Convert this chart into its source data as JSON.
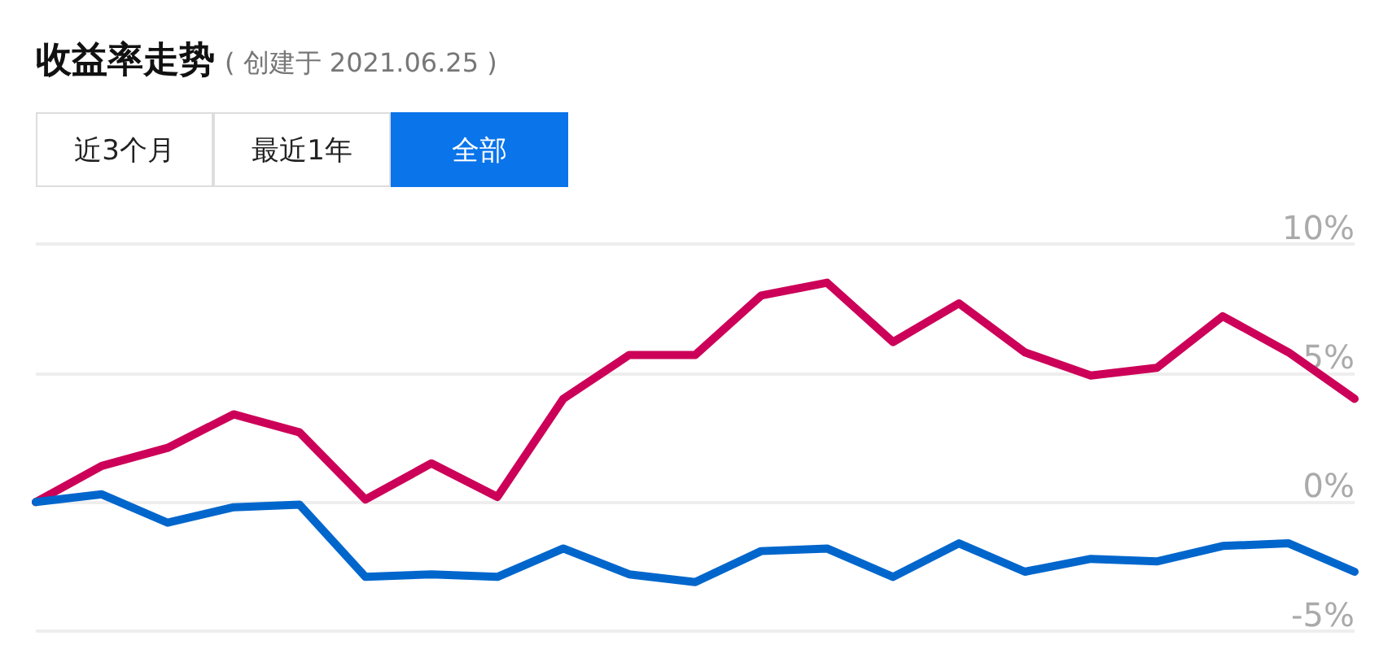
{
  "chart_data": {
    "type": "line",
    "title": "收益率走势",
    "subtitle": "( 创建于 2021.06.25 )",
    "annotations": [
      "近3个月",
      "最近1年",
      "全部"
    ],
    "categories": [
      null,
      null,
      null,
      null,
      null,
      null,
      null,
      null,
      null,
      null,
      null,
      null,
      null,
      null,
      null,
      null,
      null,
      null,
      null,
      null,
      null
    ],
    "series": [
      {
        "color": "#cc0058",
        "values": [
          0,
          1.4,
          2.1,
          3.4,
          2.7,
          0.1,
          1.5,
          0.2,
          4.0,
          5.7,
          5.7,
          8.0,
          8.5,
          6.2,
          7.7,
          5.8,
          4.9,
          5.2,
          7.2,
          5.8,
          4.0
        ]
      },
      {
        "color": "#0066cc",
        "values": [
          0,
          0.3,
          -0.8,
          -0.2,
          -0.1,
          -2.9,
          -2.8,
          -2.9,
          -1.8,
          -2.8,
          -3.1,
          -1.9,
          -1.8,
          -2.9,
          -1.6,
          -2.7,
          -2.2,
          -2.3,
          -1.7,
          -1.6,
          -2.7
        ]
      }
    ],
    "ylim": [
      -5,
      10
    ],
    "yticks": [
      {
        "value": -5,
        "label": "-5%"
      },
      {
        "value": 0,
        "label": "0%"
      },
      {
        "value": 5,
        "label": "5%"
      },
      {
        "value": 10,
        "label": "10%"
      }
    ],
    "grid": "y",
    "marker": "none",
    "line_style": "solid",
    "tick_labels": "y"
  }
}
